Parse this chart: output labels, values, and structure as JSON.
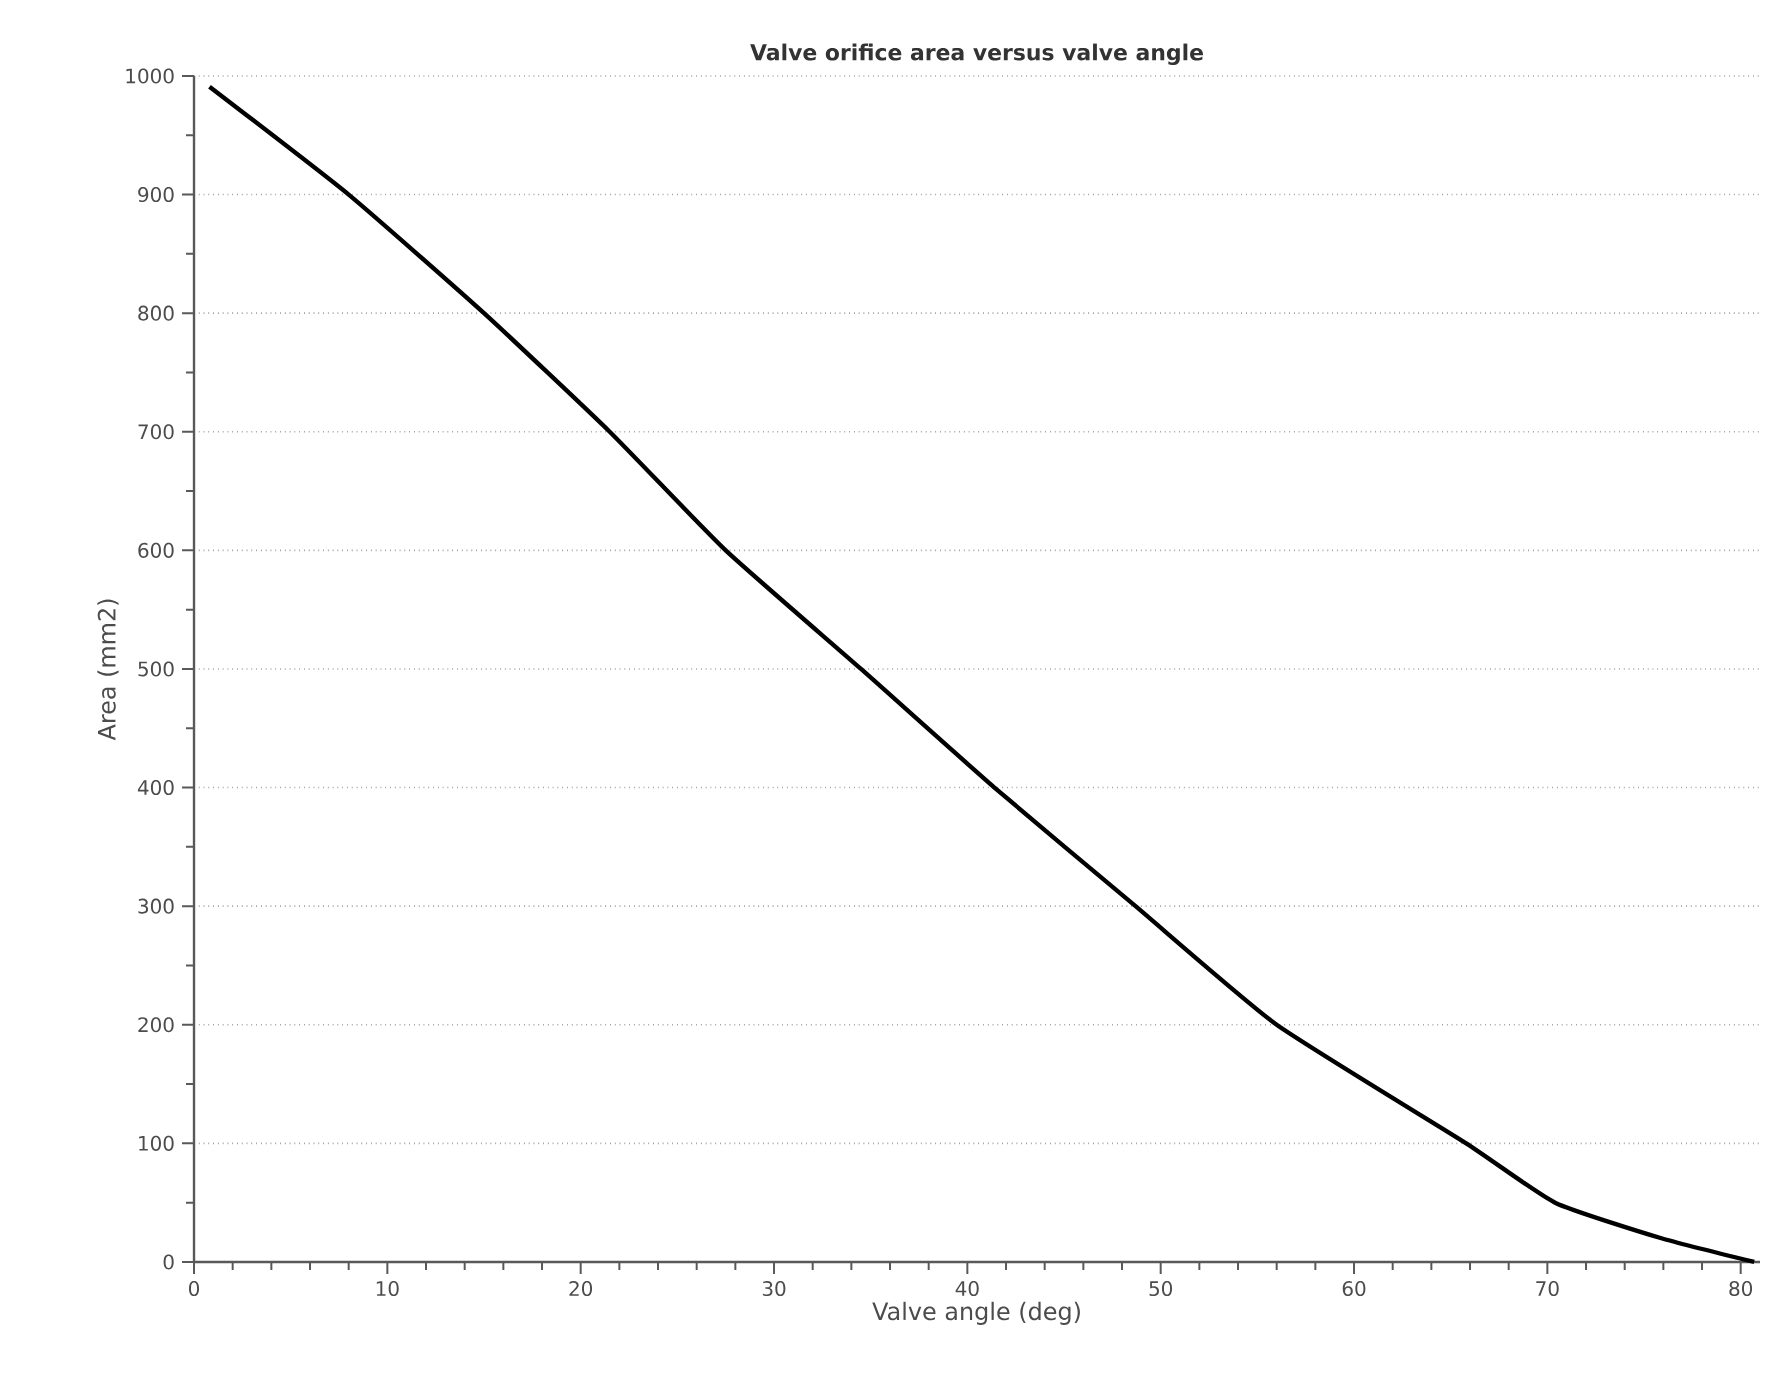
{
  "chart_data": {
    "type": "line",
    "title": "Valve orifice area versus valve angle",
    "xlabel": "Valve angle (deg)",
    "ylabel": "Area (mm2)",
    "series": [
      {
        "color": "#000000",
        "x": [
          0.8,
          8.0,
          15.0,
          21.5,
          27.5,
          34.5,
          41.4,
          48.7,
          56.0,
          65.8,
          70.4,
          75.9,
          80.7
        ],
        "values": [
          991,
          900,
          800,
          700,
          600,
          500,
          400,
          300,
          200,
          100,
          50,
          20,
          0
        ]
      }
    ],
    "xlim": [
      0,
      81
    ],
    "ylim": [
      0,
      1000
    ],
    "xticks": [
      0,
      10,
      20,
      30,
      40,
      50,
      60,
      70,
      80
    ],
    "yticks": [
      0,
      100,
      200,
      300,
      400,
      500,
      600,
      700,
      800,
      900,
      1000
    ],
    "grid": "y",
    "marker": "none",
    "line_style": "solid"
  }
}
